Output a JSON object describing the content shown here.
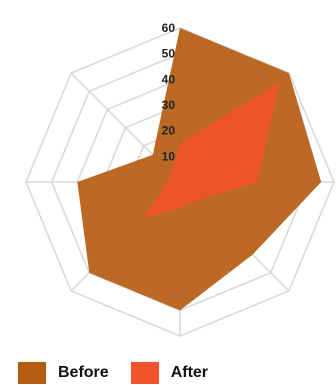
{
  "chart_data": {
    "type": "radar",
    "axes": 8,
    "rlim": [
      0,
      60
    ],
    "ticks": [
      10,
      20,
      30,
      40,
      50,
      60
    ],
    "grid": true,
    "legend_position": "bottom-left",
    "series": [
      {
        "name": "Before",
        "color": "#B65C13",
        "values": [
          60,
          60,
          55,
          40,
          50,
          50,
          40,
          15
        ]
      },
      {
        "name": "After",
        "color": "#F2532A",
        "values": [
          15,
          55,
          30,
          10,
          10,
          20,
          5,
          5
        ]
      }
    ]
  }
}
